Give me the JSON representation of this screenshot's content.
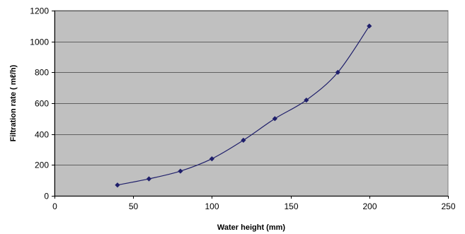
{
  "chart_data": {
    "type": "line",
    "title": "",
    "xlabel": "Water height (mm)",
    "ylabel": "Filtration rate ( mℓ/h)",
    "xlim": [
      0,
      250
    ],
    "ylim": [
      0,
      1200
    ],
    "xticks": [
      0,
      50,
      100,
      150,
      200,
      250
    ],
    "yticks": [
      0,
      200,
      400,
      600,
      800,
      1000,
      1200
    ],
    "grid": "horizontal",
    "legend": "none",
    "series": [
      {
        "x": [
          40,
          60,
          80,
          100,
          120,
          140,
          160,
          180,
          200
        ],
        "values": [
          70,
          110,
          160,
          240,
          360,
          500,
          620,
          800,
          1100
        ],
        "smoothed": true,
        "marker": "diamond"
      }
    ],
    "colors": {
      "plot_background": "#c0c0c0",
      "series_line": "#1f1f6b",
      "series_marker": "#1f1f6b",
      "grid": "#000000"
    }
  }
}
